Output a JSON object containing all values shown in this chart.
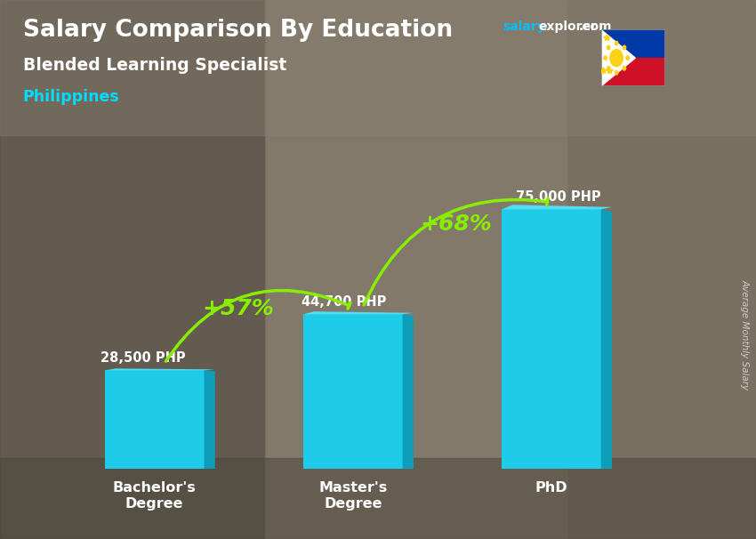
{
  "title": "Salary Comparison By Education",
  "subtitle": "Blended Learning Specialist",
  "country": "Philippines",
  "ylabel": "Average Monthly Salary",
  "categories": [
    "Bachelor's\nDegree",
    "Master's\nDegree",
    "PhD"
  ],
  "values": [
    28500,
    44700,
    75000
  ],
  "value_labels": [
    "28,500 PHP",
    "44,700 PHP",
    "75,000 PHP"
  ],
  "bar_color_face": "#1ECBE8",
  "bar_color_right": "#0E9EBA",
  "bar_color_top": "#55DCF0",
  "pct_labels": [
    "+57%",
    "+68%"
  ],
  "pct_color": "#88EE00",
  "title_color": "#FFFFFF",
  "subtitle_color": "#FFFFFF",
  "country_color": "#00DDFF",
  "salary_label_color": "#FFFFFF",
  "brand_color_salary": "#00BFFF",
  "brand_color_rest": "#FFFFFF",
  "bg_color": "#7a7265",
  "ylabel_color": "#CCCCCC",
  "figsize": [
    8.5,
    6.06
  ],
  "dpi": 100
}
